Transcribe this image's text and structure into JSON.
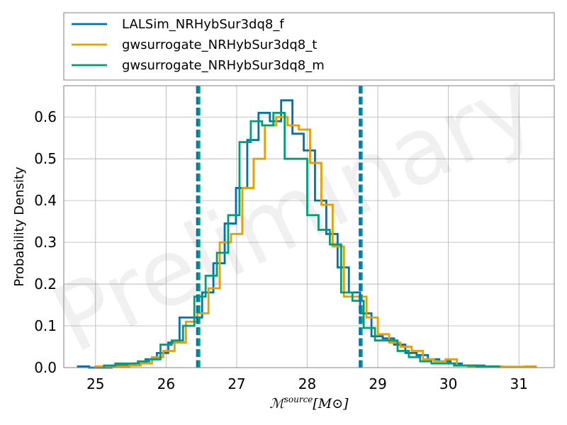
{
  "chart_data": {
    "type": "histogram",
    "watermark": "Preliminary",
    "xlabel_symbol": "ℳ",
    "xlabel_sup": "source",
    "xlabel_unit": "[M⊙]",
    "ylabel": "Probability Density",
    "xlim": [
      24.55,
      31.5
    ],
    "ylim": [
      0,
      0.675
    ],
    "xticks": [
      25,
      26,
      27,
      28,
      29,
      30,
      31
    ],
    "yticks": [
      0.0,
      0.1,
      0.2,
      0.3,
      0.4,
      0.5,
      0.6
    ],
    "grid": true,
    "legend_location": "above-plot",
    "series": [
      {
        "name": "LALSim_NRHybSur3dq8_f",
        "color": "#0072b2",
        "edges": [
          24.75,
          24.91,
          25.07,
          25.23,
          25.39,
          25.55,
          25.71,
          25.87,
          26.03,
          26.19,
          26.35,
          26.51,
          26.67,
          26.83,
          26.99,
          27.15,
          27.31,
          27.47,
          27.63,
          27.79,
          27.95,
          28.11,
          28.27,
          28.43,
          28.59,
          28.75,
          28.91,
          29.07,
          29.23,
          29.39,
          29.55,
          29.71,
          29.87,
          30.03,
          30.19,
          30.35,
          30.51,
          30.67
        ],
        "densities": [
          0.003,
          0.0,
          0.0,
          0.005,
          0.005,
          0.01,
          0.02,
          0.035,
          0.06,
          0.12,
          0.12,
          0.18,
          0.25,
          0.345,
          0.43,
          0.545,
          0.61,
          0.59,
          0.64,
          0.56,
          0.52,
          0.4,
          0.32,
          0.24,
          0.18,
          0.13,
          0.075,
          0.07,
          0.055,
          0.035,
          0.03,
          0.02,
          0.015,
          0.01,
          0.005,
          0.005,
          0.003
        ]
      },
      {
        "name": "gwsurrogate_NRHybSur3dq8_t",
        "color": "#e69f00",
        "edges": [
          25.0,
          25.16,
          25.32,
          25.48,
          25.64,
          25.8,
          25.96,
          26.12,
          26.28,
          26.44,
          26.6,
          26.76,
          26.92,
          27.08,
          27.24,
          27.4,
          27.56,
          27.72,
          27.88,
          28.04,
          28.2,
          28.36,
          28.52,
          28.68,
          28.84,
          29.0,
          29.16,
          29.32,
          29.48,
          29.64,
          29.8,
          29.96,
          30.12,
          30.28,
          30.44,
          30.6,
          30.76,
          30.92,
          31.08,
          31.24
        ],
        "densities": [
          0.003,
          0.003,
          0.003,
          0.005,
          0.01,
          0.025,
          0.04,
          0.06,
          0.11,
          0.13,
          0.19,
          0.3,
          0.32,
          0.43,
          0.5,
          0.58,
          0.6,
          0.58,
          0.57,
          0.49,
          0.39,
          0.29,
          0.17,
          0.17,
          0.12,
          0.08,
          0.06,
          0.05,
          0.04,
          0.02,
          0.015,
          0.02,
          0.005,
          0.003,
          0.003,
          0.003,
          0.002,
          0.002,
          0.003
        ]
      },
      {
        "name": "gwsurrogate_NRHybSur3dq8_m",
        "color": "#009e73",
        "edges": [
          25.12,
          25.28,
          25.44,
          25.6,
          25.76,
          25.92,
          26.08,
          26.24,
          26.4,
          26.56,
          26.72,
          26.88,
          27.04,
          27.2,
          27.36,
          27.52,
          27.68,
          27.84,
          28.0,
          28.16,
          28.32,
          28.48,
          28.64,
          28.8,
          28.96,
          29.12,
          29.28,
          29.44,
          29.6,
          29.76,
          29.92,
          30.08,
          30.24,
          30.4,
          30.56,
          30.72
        ],
        "densities": [
          0.005,
          0.01,
          0.01,
          0.015,
          0.02,
          0.055,
          0.065,
          0.1,
          0.17,
          0.22,
          0.275,
          0.365,
          0.54,
          0.59,
          0.58,
          0.61,
          0.5,
          0.5,
          0.365,
          0.33,
          0.295,
          0.18,
          0.16,
          0.095,
          0.065,
          0.065,
          0.04,
          0.025,
          0.015,
          0.01,
          0.01,
          0.005,
          0.005,
          0.003,
          0.003
        ]
      }
    ],
    "vertical_lines": [
      {
        "x": 26.455,
        "color": "#e69f00"
      },
      {
        "x": 26.47,
        "color": "#009e73"
      },
      {
        "x": 26.44,
        "color": "#0072b2"
      },
      {
        "x": 28.77,
        "color": "#009e73"
      },
      {
        "x": 28.745,
        "color": "#0072b2"
      }
    ]
  }
}
